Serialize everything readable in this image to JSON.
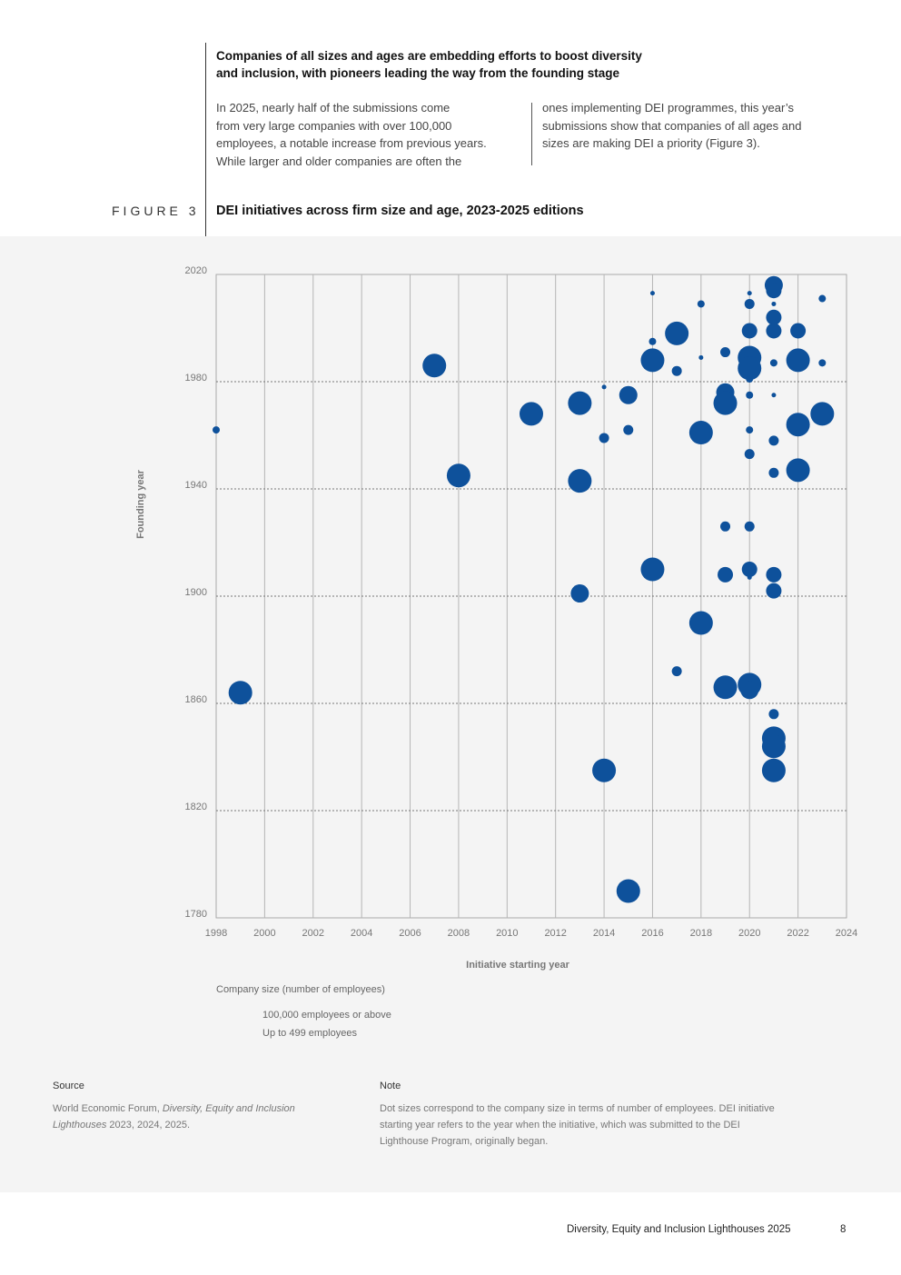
{
  "header": {
    "headline_line1": "Companies of all sizes and ages are embedding efforts to boost diversity",
    "headline_line2": "and inclusion, with pioneers leading the way from the founding stage",
    "col1_lines": [
      "In 2025, nearly half of the submissions come",
      "from very large companies with over 100,000",
      "employees, a notable increase from previous years.",
      "While larger and older companies are often the"
    ],
    "col2_lines": [
      "ones implementing DEI programmes, this year’s",
      "submissions show that companies of all ages and",
      "sizes are making DEI a priority (Figure 3)."
    ]
  },
  "figure": {
    "label": "FIGURE 3",
    "title": "DEI initiatives across firm size and age, 2023-2025 editions"
  },
  "legend": {
    "title": "Company size (number of employees)",
    "large": "100,000 employees or above",
    "small": "Up to 499 employees"
  },
  "source": {
    "heading": "Source",
    "text_prefix": "World Economic Forum, ",
    "text_italic_1": "Diversity, Equity and Inclusion",
    "text_italic_2": "Lighthouses",
    "text_suffix": " 2023, 2024, 2025."
  },
  "note": {
    "heading": "Note",
    "lines": [
      "Dot sizes correspond to the company size in terms of number of employees. DEI initiative",
      "starting year refers to the year when the initiative, which was submitted to the DEI",
      "Lighthouse Program, originally began."
    ]
  },
  "footer": {
    "title": "Diversity, Equity and Inclusion Lighthouses 2025",
    "page": "8"
  },
  "colors": {
    "dot": "#0e519b",
    "panel": "#f4f4f4"
  },
  "chart_data": {
    "type": "scatter",
    "title": "DEI initiatives across firm size and age, 2023-2025 editions",
    "xlabel": "Initiative starting year",
    "ylabel": "Founding year",
    "xlim": [
      1998,
      2024
    ],
    "ylim": [
      1780,
      2020
    ],
    "xticks": [
      1998,
      2000,
      2002,
      2004,
      2006,
      2008,
      2010,
      2012,
      2014,
      2016,
      2018,
      2020,
      2022,
      2024
    ],
    "yticks": [
      1780,
      1820,
      1860,
      1900,
      1940,
      1980,
      2020
    ],
    "size_unit": "relative company size (1 = up to 499 employees, 10 = 100,000 employees or above)",
    "points": [
      {
        "x": 1998,
        "y": 1962,
        "s": 2
      },
      {
        "x": 1999,
        "y": 1864,
        "s": 8
      },
      {
        "x": 2007,
        "y": 1986,
        "s": 8
      },
      {
        "x": 2008,
        "y": 1945,
        "s": 8
      },
      {
        "x": 2011,
        "y": 1968,
        "s": 8
      },
      {
        "x": 2013,
        "y": 1972,
        "s": 8
      },
      {
        "x": 2013,
        "y": 1943,
        "s": 8
      },
      {
        "x": 2013,
        "y": 1901,
        "s": 6
      },
      {
        "x": 2014,
        "y": 1978,
        "s": 1
      },
      {
        "x": 2014,
        "y": 1959,
        "s": 3
      },
      {
        "x": 2014,
        "y": 1835,
        "s": 8
      },
      {
        "x": 2015,
        "y": 1975,
        "s": 6
      },
      {
        "x": 2015,
        "y": 1962,
        "s": 3
      },
      {
        "x": 2015,
        "y": 1790,
        "s": 8
      },
      {
        "x": 2016,
        "y": 2013,
        "s": 1
      },
      {
        "x": 2016,
        "y": 1995,
        "s": 2
      },
      {
        "x": 2016,
        "y": 1988,
        "s": 8
      },
      {
        "x": 2016,
        "y": 1910,
        "s": 8
      },
      {
        "x": 2017,
        "y": 1998,
        "s": 8
      },
      {
        "x": 2017,
        "y": 1984,
        "s": 3
      },
      {
        "x": 2017,
        "y": 1872,
        "s": 3
      },
      {
        "x": 2018,
        "y": 2009,
        "s": 2
      },
      {
        "x": 2018,
        "y": 1989,
        "s": 1
      },
      {
        "x": 2018,
        "y": 1961,
        "s": 8
      },
      {
        "x": 2018,
        "y": 1890,
        "s": 8
      },
      {
        "x": 2019,
        "y": 1991,
        "s": 3
      },
      {
        "x": 2019,
        "y": 1976,
        "s": 6
      },
      {
        "x": 2019,
        "y": 1972,
        "s": 8
      },
      {
        "x": 2019,
        "y": 1926,
        "s": 3
      },
      {
        "x": 2019,
        "y": 1908,
        "s": 5
      },
      {
        "x": 2019,
        "y": 1866,
        "s": 8
      },
      {
        "x": 2020,
        "y": 2013,
        "s": 1
      },
      {
        "x": 2020,
        "y": 2009,
        "s": 3
      },
      {
        "x": 2020,
        "y": 1999,
        "s": 5
      },
      {
        "x": 2020,
        "y": 1989,
        "s": 8
      },
      {
        "x": 2020,
        "y": 1985,
        "s": 8
      },
      {
        "x": 2020,
        "y": 1981,
        "s": 2
      },
      {
        "x": 2020,
        "y": 1975,
        "s": 2
      },
      {
        "x": 2020,
        "y": 1962,
        "s": 2
      },
      {
        "x": 2020,
        "y": 1953,
        "s": 3
      },
      {
        "x": 2020,
        "y": 1926,
        "s": 3
      },
      {
        "x": 2020,
        "y": 1910,
        "s": 5
      },
      {
        "x": 2020,
        "y": 1907,
        "s": 1
      },
      {
        "x": 2020,
        "y": 1867,
        "s": 8
      },
      {
        "x": 2020,
        "y": 1865,
        "s": 6
      },
      {
        "x": 2021,
        "y": 2016,
        "s": 6
      },
      {
        "x": 2021,
        "y": 2014,
        "s": 5
      },
      {
        "x": 2021,
        "y": 2009,
        "s": 1
      },
      {
        "x": 2021,
        "y": 2004,
        "s": 5
      },
      {
        "x": 2021,
        "y": 1999,
        "s": 5
      },
      {
        "x": 2021,
        "y": 1987,
        "s": 2
      },
      {
        "x": 2021,
        "y": 1975,
        "s": 1
      },
      {
        "x": 2021,
        "y": 1958,
        "s": 3
      },
      {
        "x": 2021,
        "y": 1946,
        "s": 3
      },
      {
        "x": 2021,
        "y": 1908,
        "s": 5
      },
      {
        "x": 2021,
        "y": 1902,
        "s": 5
      },
      {
        "x": 2021,
        "y": 1856,
        "s": 3
      },
      {
        "x": 2021,
        "y": 1847,
        "s": 8
      },
      {
        "x": 2021,
        "y": 1844,
        "s": 8
      },
      {
        "x": 2021,
        "y": 1835,
        "s": 8
      },
      {
        "x": 2022,
        "y": 1999,
        "s": 5
      },
      {
        "x": 2022,
        "y": 1988,
        "s": 8
      },
      {
        "x": 2022,
        "y": 1964,
        "s": 8
      },
      {
        "x": 2022,
        "y": 1947,
        "s": 8
      },
      {
        "x": 2023,
        "y": 2011,
        "s": 2
      },
      {
        "x": 2023,
        "y": 1987,
        "s": 2
      },
      {
        "x": 2023,
        "y": 1968,
        "s": 8
      }
    ]
  }
}
